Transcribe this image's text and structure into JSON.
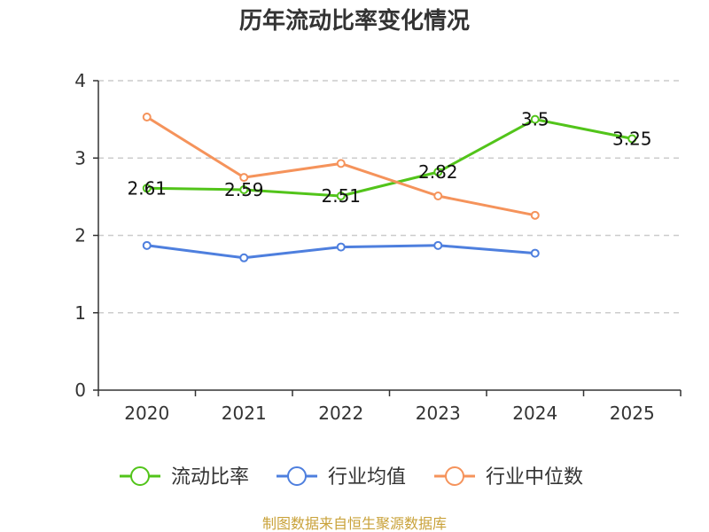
{
  "chart_data": {
    "type": "line",
    "title": "历年流动比率变化情况",
    "categories": [
      "2020",
      "2021",
      "2022",
      "2023",
      "2024",
      "2025"
    ],
    "ylim": [
      0,
      4
    ],
    "yticks": [
      0,
      1,
      2,
      3,
      4
    ],
    "grid": true,
    "legend_position": "bottom",
    "series": [
      {
        "name": "流动比率",
        "color": "#52c41a",
        "values": [
          2.61,
          2.59,
          2.51,
          2.82,
          3.5,
          3.25
        ],
        "show_labels": true,
        "labels": [
          "2.61",
          "2.59",
          "2.51",
          "2.82",
          "3.5",
          "3.25"
        ]
      },
      {
        "name": "行业均值",
        "color": "#4e7fde",
        "values": [
          1.87,
          1.71,
          1.85,
          1.87,
          1.77,
          null
        ],
        "show_labels": false
      },
      {
        "name": "行业中位数",
        "color": "#f5935b",
        "values": [
          3.53,
          2.75,
          2.93,
          2.51,
          2.26,
          null
        ],
        "show_labels": false
      }
    ],
    "source": "制图数据来自恒生聚源数据库",
    "source_color": "#c9a23a"
  }
}
